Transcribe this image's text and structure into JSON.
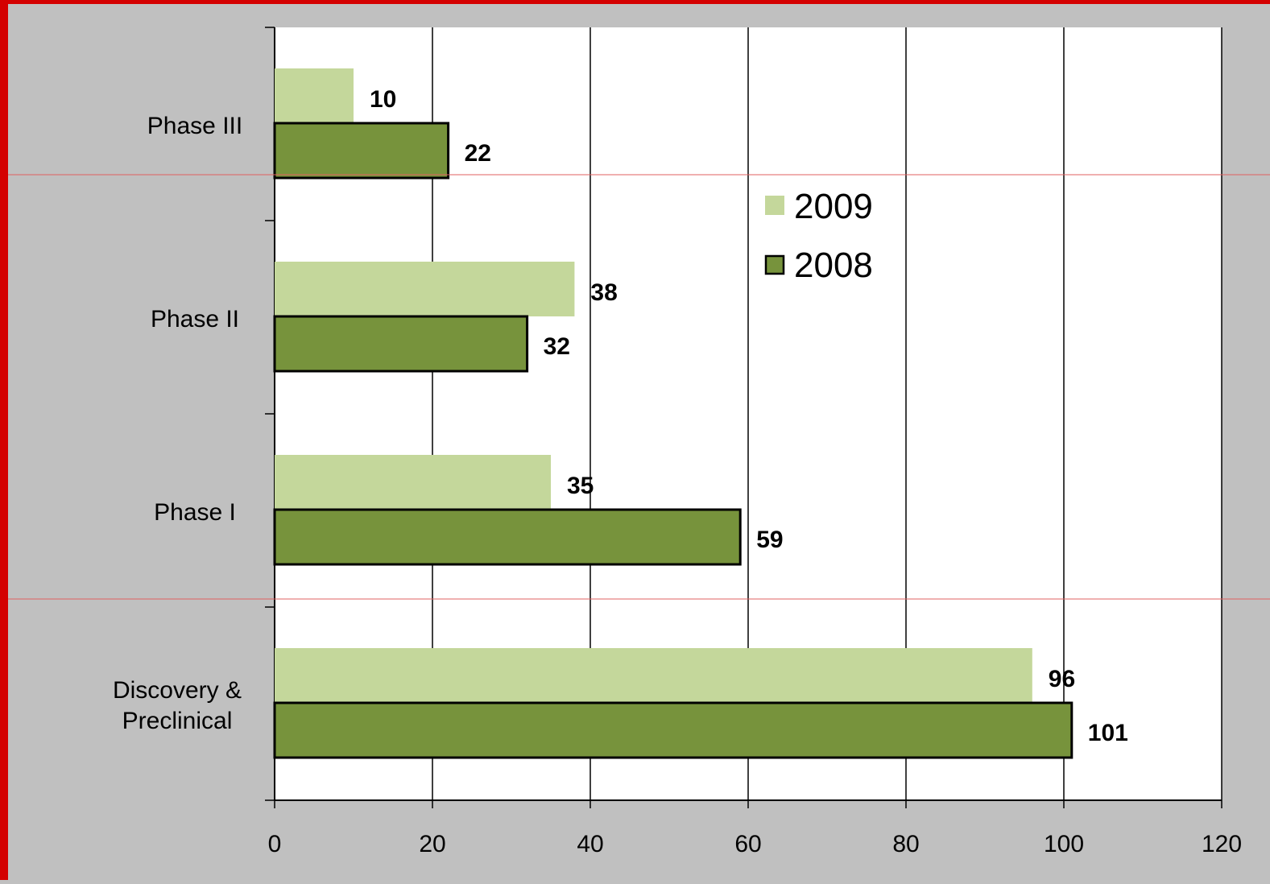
{
  "chart_data": {
    "type": "bar",
    "orientation": "horizontal",
    "categories": [
      "Phase III",
      "Phase II",
      "Phase I",
      "Discovery & Preclinical"
    ],
    "category_lines": [
      [
        "Phase III"
      ],
      [
        "Phase II"
      ],
      [
        "Phase I"
      ],
      [
        "Discovery &",
        "Preclinical"
      ]
    ],
    "series": [
      {
        "name": "2009",
        "values": [
          10,
          38,
          35,
          96
        ],
        "color": "#c4d79b"
      },
      {
        "name": "2008",
        "values": [
          22,
          32,
          59,
          101
        ],
        "color": "#77933c",
        "outline": "#000000"
      }
    ],
    "xlim": [
      0,
      120
    ],
    "xticks": [
      "0",
      "20",
      "40",
      "60",
      "80",
      "100",
      "120"
    ],
    "grid": "vertical",
    "legend_position": "upper-right",
    "title": "",
    "xlabel": "",
    "ylabel": ""
  },
  "colors": {
    "background": "#c0c0c0",
    "plot_area": "#ffffff",
    "border": "#d40000",
    "guide_lines": "#e06060"
  }
}
